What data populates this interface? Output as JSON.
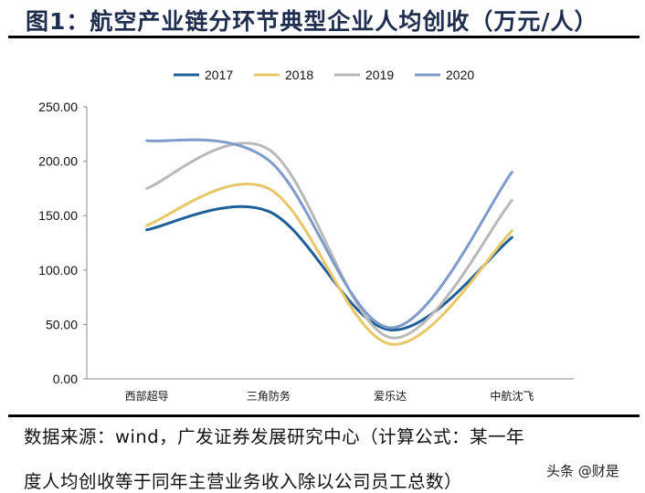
{
  "title": "图1：航空产业链分环节典型企业人均创收（万元/人）",
  "chart_data": {
    "type": "line",
    "smoothed": true,
    "categories": [
      "西部超导",
      "三角防务",
      "爱乐达",
      "中航沈飞"
    ],
    "series": [
      {
        "name": "2017",
        "color": "#1f5f99",
        "values": [
          137,
          154,
          45,
          130
        ]
      },
      {
        "name": "2018",
        "color": "#e8c768",
        "values": [
          141,
          175,
          32,
          136
        ]
      },
      {
        "name": "2019",
        "color": "#b9b9b9",
        "values": [
          175,
          211,
          38,
          164
        ]
      },
      {
        "name": "2020",
        "color": "#7f9bcb",
        "values": [
          219,
          201,
          47,
          190
        ]
      }
    ],
    "ylim": [
      0,
      250
    ],
    "yticks": [
      "0.00",
      "50.00",
      "100.00",
      "150.00",
      "200.00",
      "250.00"
    ],
    "grid": false,
    "legend": "top"
  },
  "source": {
    "line1": "数据来源：wind，广发证券发展研究中心（计算公式：某一年",
    "line2": "度人均创收等于同年主营业务收入除以公司员工总数）"
  },
  "watermark": "头条 @财是"
}
